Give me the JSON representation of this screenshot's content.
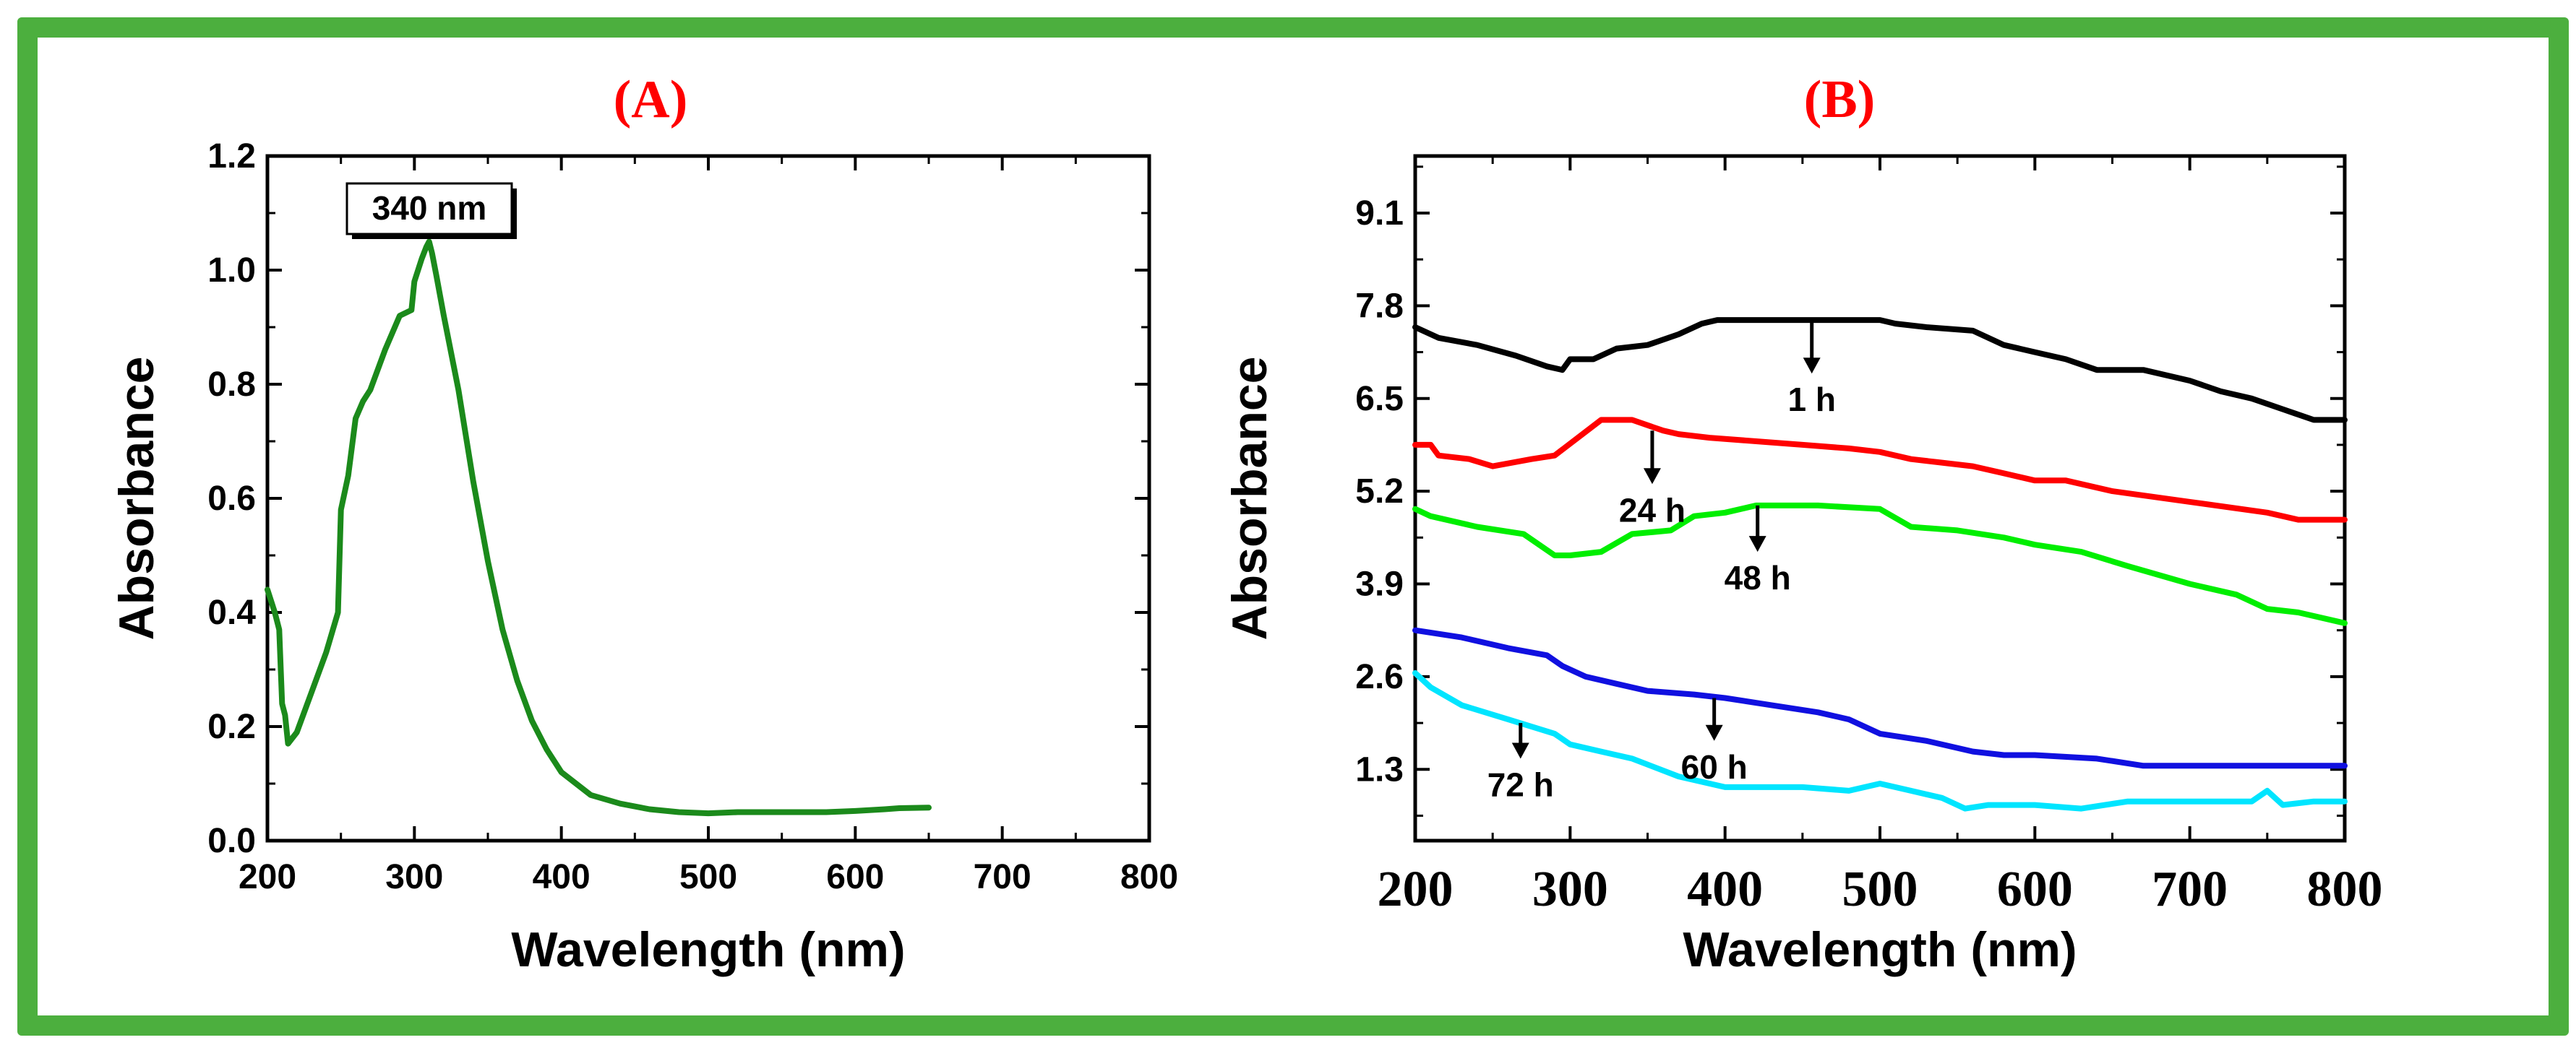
{
  "colors": {
    "frame": "#4caf3e",
    "panel_label": "#ff0000"
  },
  "chart_data": [
    {
      "panel": "(A)",
      "type": "line",
      "xlabel": "Wavelength (nm)",
      "ylabel": "Absorbance",
      "xlim": [
        200,
        800
      ],
      "ylim": [
        0.0,
        1.2
      ],
      "xticks": [
        "200",
        "300",
        "400",
        "500",
        "600",
        "700",
        "800"
      ],
      "yticks": [
        "0.0",
        "0.2",
        "0.4",
        "0.6",
        "0.8",
        "1.0",
        "1.2"
      ],
      "annotation": "340 nm",
      "series": [
        {
          "name": "Absorbance",
          "color": "#1b8a1b",
          "x": [
            200,
            205,
            208,
            210,
            212,
            214,
            220,
            230,
            240,
            248,
            250,
            255,
            260,
            265,
            270,
            280,
            290,
            298,
            300,
            305,
            308,
            310,
            312,
            315,
            320,
            330,
            340,
            350,
            360,
            370,
            380,
            390,
            400,
            420,
            440,
            460,
            480,
            500,
            520,
            550,
            580,
            600,
            620,
            630,
            650
          ],
          "y": [
            0.44,
            0.4,
            0.37,
            0.24,
            0.22,
            0.17,
            0.19,
            0.26,
            0.33,
            0.4,
            0.58,
            0.64,
            0.74,
            0.77,
            0.79,
            0.86,
            0.92,
            0.93,
            0.98,
            1.02,
            1.04,
            1.05,
            1.03,
            0.99,
            0.92,
            0.79,
            0.63,
            0.49,
            0.37,
            0.28,
            0.21,
            0.16,
            0.12,
            0.08,
            0.065,
            0.055,
            0.05,
            0.048,
            0.05,
            0.05,
            0.05,
            0.052,
            0.055,
            0.057,
            0.058
          ]
        }
      ]
    },
    {
      "panel": "(B)",
      "type": "line",
      "xlabel": "Wavelength (nm)",
      "ylabel": "Absorbance",
      "xlim": [
        200,
        800
      ],
      "ylim": [
        0.3,
        9.9
      ],
      "xticks": [
        "200",
        "300",
        "400",
        "500",
        "600",
        "700",
        "800"
      ],
      "yticks": [
        "1.3",
        "2.6",
        "3.9",
        "5.2",
        "6.5",
        "7.8",
        "9.1"
      ],
      "series": [
        {
          "name": "1 h",
          "color": "#000000",
          "x": [
            200,
            215,
            240,
            265,
            285,
            295,
            300,
            315,
            330,
            350,
            370,
            385,
            395,
            410,
            430,
            500,
            510,
            530,
            560,
            580,
            600,
            620,
            640,
            670,
            700,
            720,
            740,
            760,
            780,
            800
          ],
          "y": [
            7.5,
            7.35,
            7.25,
            7.1,
            6.95,
            6.9,
            7.05,
            7.05,
            7.2,
            7.25,
            7.4,
            7.55,
            7.6,
            7.6,
            7.6,
            7.6,
            7.55,
            7.5,
            7.45,
            7.25,
            7.15,
            7.05,
            6.9,
            6.9,
            6.75,
            6.6,
            6.5,
            6.35,
            6.2,
            6.2
          ]
        },
        {
          "name": "24 h",
          "color": "#ff0000",
          "x": [
            200,
            210,
            215,
            235,
            250,
            275,
            290,
            320,
            340,
            360,
            370,
            390,
            420,
            450,
            480,
            500,
            520,
            540,
            560,
            580,
            600,
            620,
            650,
            700,
            750,
            770,
            800
          ],
          "y": [
            5.85,
            5.85,
            5.7,
            5.65,
            5.55,
            5.65,
            5.7,
            6.2,
            6.2,
            6.05,
            6.0,
            5.95,
            5.9,
            5.85,
            5.8,
            5.75,
            5.65,
            5.6,
            5.55,
            5.45,
            5.35,
            5.35,
            5.2,
            5.05,
            4.9,
            4.8,
            4.8
          ]
        },
        {
          "name": "48 h",
          "color": "#00ee00",
          "x": [
            200,
            210,
            240,
            270,
            290,
            300,
            320,
            340,
            365,
            380,
            400,
            420,
            440,
            460,
            500,
            520,
            550,
            580,
            600,
            630,
            660,
            700,
            730,
            750,
            770,
            800
          ],
          "y": [
            4.95,
            4.85,
            4.7,
            4.6,
            4.3,
            4.3,
            4.35,
            4.6,
            4.65,
            4.85,
            4.9,
            5.0,
            5.0,
            5.0,
            4.95,
            4.7,
            4.65,
            4.55,
            4.45,
            4.35,
            4.15,
            3.9,
            3.75,
            3.55,
            3.5,
            3.35
          ]
        },
        {
          "name": "60 h",
          "color": "#1010e0",
          "x": [
            200,
            230,
            260,
            285,
            295,
            310,
            330,
            350,
            380,
            400,
            430,
            460,
            480,
            500,
            530,
            560,
            580,
            600,
            640,
            670,
            700,
            800
          ],
          "y": [
            3.25,
            3.15,
            3.0,
            2.9,
            2.75,
            2.6,
            2.5,
            2.4,
            2.35,
            2.3,
            2.2,
            2.1,
            2.0,
            1.8,
            1.7,
            1.55,
            1.5,
            1.5,
            1.45,
            1.35,
            1.35,
            1.35
          ]
        },
        {
          "name": "72 h",
          "color": "#00e5ff",
          "x": [
            200,
            210,
            230,
            260,
            290,
            300,
            320,
            340,
            370,
            400,
            450,
            480,
            500,
            520,
            540,
            555,
            570,
            600,
            630,
            660,
            700,
            740,
            750,
            760,
            780,
            800
          ],
          "y": [
            2.65,
            2.45,
            2.2,
            2.0,
            1.8,
            1.65,
            1.55,
            1.45,
            1.2,
            1.05,
            1.05,
            1.0,
            1.1,
            1.0,
            0.9,
            0.75,
            0.8,
            0.8,
            0.75,
            0.85,
            0.85,
            0.85,
            1.0,
            0.8,
            0.85,
            0.85
          ]
        }
      ],
      "annotations": [
        {
          "label": "1 h",
          "x": 456,
          "y_from": 7.6,
          "y_to": 6.85
        },
        {
          "label": "24 h",
          "x": 353,
          "y_from": 6.05,
          "y_to": 5.3
        },
        {
          "label": "48 h",
          "x": 421,
          "y_from": 5.0,
          "y_to": 4.35
        },
        {
          "label": "60 h",
          "x": 393,
          "y_from": 2.3,
          "y_to": 1.7
        },
        {
          "label": "72 h",
          "x": 268,
          "y_from": 1.95,
          "y_to": 1.45
        }
      ]
    }
  ]
}
